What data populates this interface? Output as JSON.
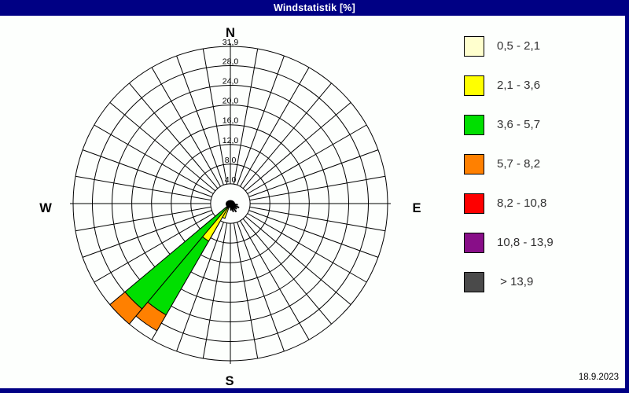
{
  "window": {
    "title": "Windstatistik [%]",
    "date": "18.9.2023",
    "frame_color": "#000084",
    "title_text_color": "#FFFFFF",
    "background_color": "#FDFFFD"
  },
  "compass": {
    "north": "N",
    "east": "E",
    "south": "S",
    "west": "W"
  },
  "chart_data": {
    "type": "windrose",
    "title": "Windstatistik [%]",
    "unit": "%",
    "sector_count": 36,
    "sector_width_deg": 10,
    "grid_on": true,
    "grid_color": "#000000",
    "max": 31.9,
    "ring_values": [
      4.0,
      8.0,
      12.0,
      16.0,
      20.0,
      24.0,
      28.0,
      31.9
    ],
    "ring_labels": [
      "4,0",
      "8,0",
      "12,0",
      "16,0",
      "20,0",
      "24,0",
      "28,0",
      "31,9"
    ],
    "legend_position": "right",
    "legend": [
      {
        "label": "0,5 - 2,1",
        "color": "#FFFFCE"
      },
      {
        "label": "2,1 - 3,6",
        "color": "#FFFF00"
      },
      {
        "label": "3,6 - 5,7",
        "color": "#00DF00"
      },
      {
        "label": "5,7 - 8,2",
        "color": "#FF8000"
      },
      {
        "label": "8,2 - 10,8",
        "color": "#FE0000"
      },
      {
        "label": "10,8 - 13,9",
        "color": "#880E88"
      },
      {
        "label": " > 13,9",
        "color": "#4A4A4A"
      }
    ],
    "wedges": [
      {
        "dir_from": 210,
        "dir_to": 220,
        "compass_sector": "SSW",
        "segments": [
          {
            "class": "2,1 - 3,6",
            "color": "#FFFF00",
            "from": 0,
            "to": 8.8
          },
          {
            "class": "3,6 - 5,7",
            "color": "#00DF00",
            "from": 8.8,
            "to": 26.1
          },
          {
            "class": "5,7 - 8,2",
            "color": "#FF8000",
            "from": 26.1,
            "to": 29.8
          }
        ]
      },
      {
        "dir_from": 220,
        "dir_to": 230,
        "compass_sector": "SW",
        "segments": [
          {
            "class": "3,6 - 5,7",
            "color": "#00DF00",
            "from": 0,
            "to": 27.9
          },
          {
            "class": "5,7 - 8,2",
            "color": "#FF8000",
            "from": 27.9,
            "to": 31.9
          }
        ]
      },
      {
        "dir_from": 200,
        "dir_to": 210,
        "compass_sector": "SSW",
        "segments": [
          {
            "class": "2,1 - 3,6",
            "color": "#FFFF00",
            "from": 0,
            "to": 3.2
          }
        ]
      }
    ],
    "micro_spikes": [
      {
        "bearing": 100,
        "value": 1.2
      },
      {
        "bearing": 115,
        "value": 1.5
      },
      {
        "bearing": 130,
        "value": 1.3
      },
      {
        "bearing": 145,
        "value": 1.6
      },
      {
        "bearing": 160,
        "value": 1.4
      },
      {
        "bearing": 175,
        "value": 1.1
      }
    ]
  }
}
